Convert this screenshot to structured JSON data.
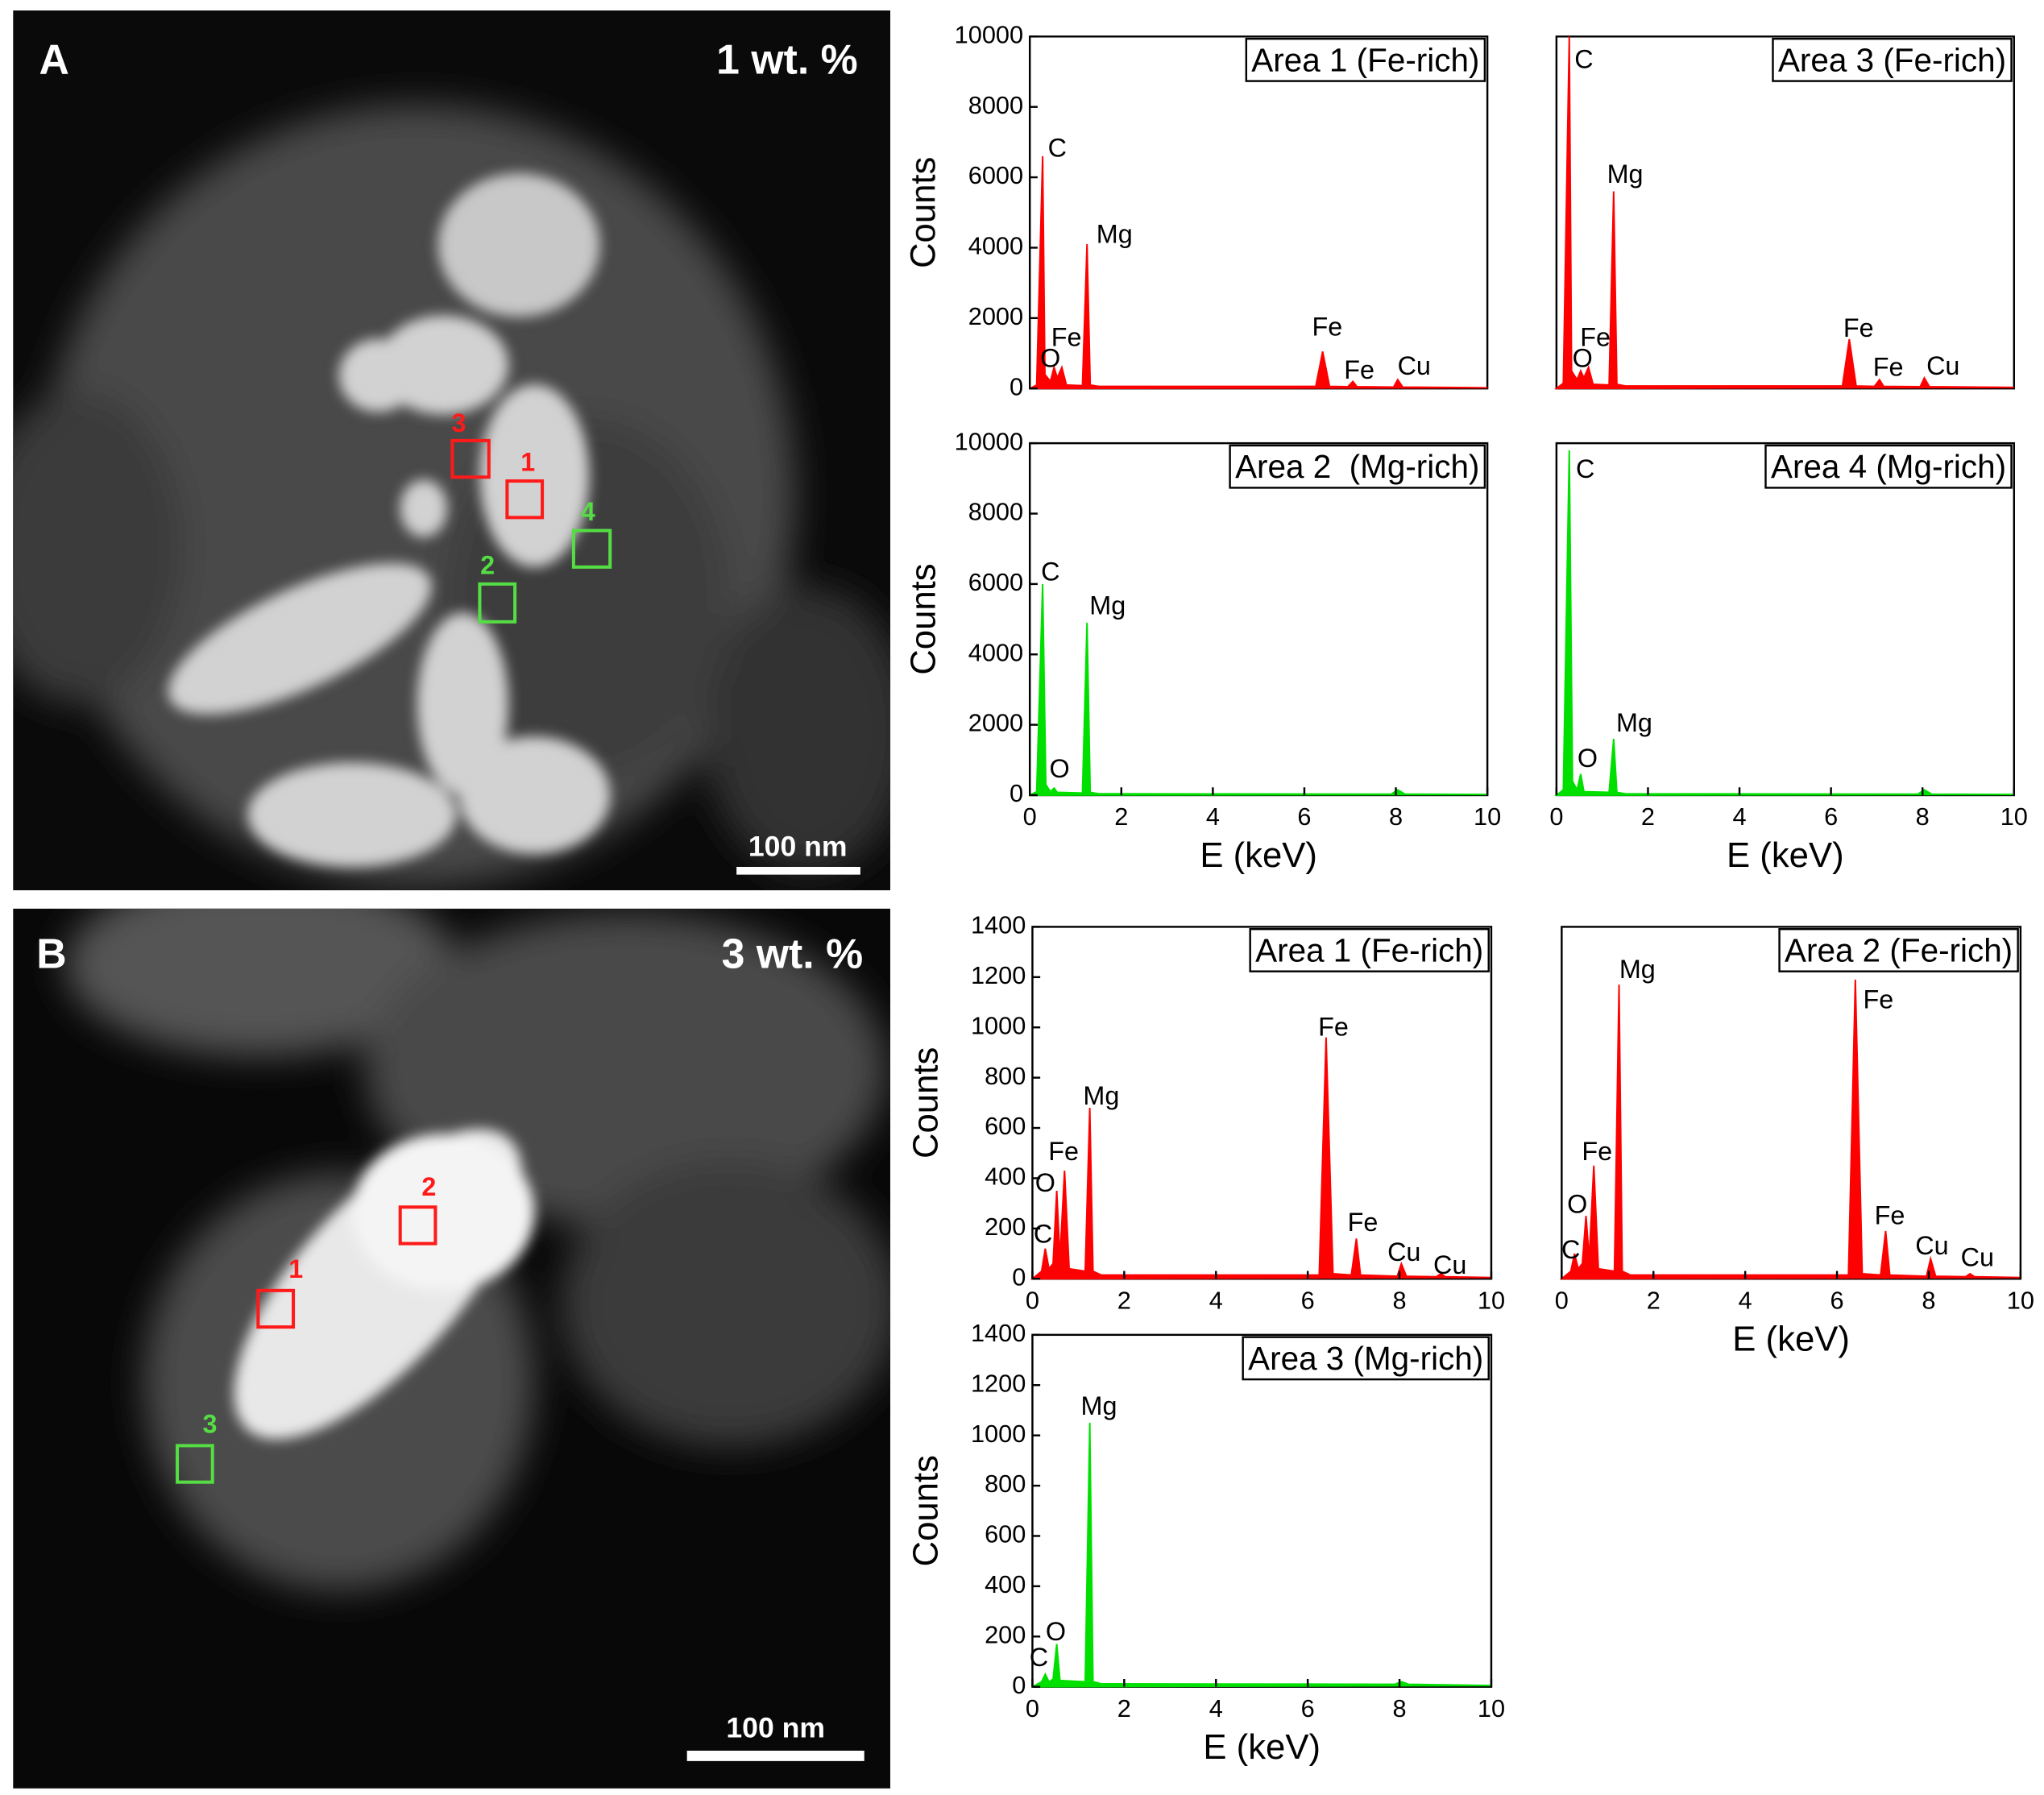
{
  "panels": [
    {
      "label": "A",
      "loading": "1 wt. %",
      "scale_bar": "100 nm",
      "areas": [
        "1",
        "2",
        "3",
        "4"
      ]
    },
    {
      "label": "B",
      "loading": "3 wt. %",
      "scale_bar": "100 nm",
      "areas": [
        "1",
        "2",
        "3"
      ]
    }
  ],
  "chart_data": [
    {
      "type": "area",
      "title": "Area 1 (Fe-rich)",
      "ylabel": "Counts",
      "color": "#ff0000",
      "x": [
        0,
        0.15,
        0.28,
        0.33,
        0.45,
        0.53,
        0.6,
        0.7,
        0.8,
        1.15,
        1.25,
        1.32,
        1.5,
        6.25,
        6.4,
        6.55,
        6.95,
        7.06,
        7.15,
        7.95,
        8.04,
        8.15,
        10
      ],
      "values": [
        0,
        100,
        6600,
        400,
        200,
        600,
        300,
        600,
        100,
        80,
        4100,
        100,
        60,
        60,
        1050,
        60,
        50,
        200,
        50,
        40,
        250,
        40,
        20
      ],
      "xlim": [
        0,
        10
      ],
      "ylim": [
        0,
        10000
      ],
      "yticks": [
        0,
        2000,
        4000,
        6000,
        8000,
        10000
      ],
      "annotations": [
        {
          "text": "C",
          "x": 0.6,
          "y": 6780
        },
        {
          "text": "Fe",
          "x": 0.8,
          "y": 1400
        },
        {
          "text": "O",
          "x": 0.45,
          "y": 810
        },
        {
          "text": "Mg",
          "x": 1.85,
          "y": 4330
        },
        {
          "text": "Fe",
          "x": 6.5,
          "y": 1700
        },
        {
          "text": "Fe",
          "x": 7.2,
          "y": 480
        },
        {
          "text": "Cu",
          "x": 8.4,
          "y": 590
        }
      ]
    },
    {
      "type": "area",
      "title": "Area 3 (Fe-rich)",
      "color": "#ff0000",
      "x": [
        0,
        0.15,
        0.28,
        0.33,
        0.45,
        0.53,
        0.6,
        0.7,
        0.8,
        1.15,
        1.25,
        1.32,
        1.5,
        6.25,
        6.4,
        6.55,
        6.95,
        7.06,
        7.15,
        7.95,
        8.04,
        8.15,
        10
      ],
      "values": [
        0,
        150,
        10000,
        500,
        250,
        500,
        300,
        600,
        120,
        100,
        5600,
        120,
        70,
        70,
        1400,
        70,
        60,
        250,
        60,
        50,
        300,
        50,
        30
      ],
      "xlim": [
        0,
        10
      ],
      "ylim": [
        0,
        10000
      ],
      "annotations": [
        {
          "text": "C",
          "x": 0.6,
          "y": 9300
        },
        {
          "text": "Mg",
          "x": 1.5,
          "y": 6040
        },
        {
          "text": "Fe",
          "x": 0.85,
          "y": 1400
        },
        {
          "text": "O",
          "x": 0.57,
          "y": 810
        },
        {
          "text": "Fe",
          "x": 6.6,
          "y": 1670
        },
        {
          "text": "Fe",
          "x": 7.25,
          "y": 560
        },
        {
          "text": "Cu",
          "x": 8.45,
          "y": 590
        }
      ]
    },
    {
      "type": "area",
      "title": "Area 2  (Mg-rich)",
      "xlabel": "E (keV)",
      "ylabel": "Counts",
      "color": "#00e000",
      "x": [
        0,
        0.15,
        0.28,
        0.35,
        0.45,
        0.53,
        0.6,
        1.15,
        1.25,
        1.32,
        1.5,
        7.9,
        8.04,
        8.2,
        10
      ],
      "values": [
        0,
        100,
        6000,
        300,
        100,
        200,
        80,
        60,
        4900,
        80,
        40,
        30,
        150,
        30,
        20
      ],
      "xlim": [
        0,
        10
      ],
      "ylim": [
        0,
        10000
      ],
      "xticks": [
        0,
        2,
        4,
        6,
        8,
        10
      ],
      "yticks": [
        0,
        2000,
        4000,
        6000,
        8000,
        10000
      ],
      "annotations": [
        {
          "text": "C",
          "x": 0.45,
          "y": 6300
        },
        {
          "text": "Mg",
          "x": 1.7,
          "y": 5330
        },
        {
          "text": "O",
          "x": 0.65,
          "y": 700
        }
      ]
    },
    {
      "type": "area",
      "title": "Area 4 (Mg-rich)",
      "xlabel": "E (keV)",
      "color": "#00e000",
      "x": [
        0,
        0.15,
        0.28,
        0.35,
        0.45,
        0.53,
        0.6,
        1.15,
        1.25,
        1.32,
        1.5,
        7.9,
        8.04,
        8.2,
        10
      ],
      "values": [
        0,
        150,
        9800,
        400,
        150,
        600,
        100,
        80,
        1600,
        80,
        40,
        30,
        150,
        30,
        20
      ],
      "xlim": [
        0,
        10
      ],
      "ylim": [
        0,
        10000
      ],
      "xticks": [
        0,
        2,
        4,
        6,
        8,
        10
      ],
      "annotations": [
        {
          "text": "C",
          "x": 0.63,
          "y": 9220
        },
        {
          "text": "Mg",
          "x": 1.7,
          "y": 2000
        },
        {
          "text": "O",
          "x": 0.68,
          "y": 1000
        }
      ]
    },
    {
      "type": "area",
      "title": "Area 1 (Fe-rich)",
      "ylabel": "Counts",
      "color": "#ff0000",
      "x": [
        0,
        0.2,
        0.28,
        0.36,
        0.45,
        0.53,
        0.6,
        0.7,
        0.8,
        1.15,
        1.25,
        1.32,
        1.5,
        6.25,
        6.4,
        6.55,
        6.95,
        7.06,
        7.15,
        7.95,
        8.04,
        8.15,
        8.8,
        8.9,
        9.0,
        10
      ],
      "values": [
        0,
        30,
        120,
        40,
        60,
        350,
        80,
        430,
        40,
        30,
        680,
        30,
        15,
        15,
        960,
        20,
        15,
        160,
        15,
        10,
        60,
        10,
        8,
        20,
        8,
        5
      ],
      "xlim": [
        0,
        10
      ],
      "ylim": [
        0,
        1400
      ],
      "xticks": [
        0,
        2,
        4,
        6,
        8,
        10
      ],
      "yticks": [
        0,
        200,
        400,
        600,
        800,
        1000,
        1200,
        1400
      ],
      "annotations": [
        {
          "text": "Mg",
          "x": 1.5,
          "y": 720
        },
        {
          "text": "Fe",
          "x": 0.68,
          "y": 500
        },
        {
          "text": "O",
          "x": 0.28,
          "y": 375
        },
        {
          "text": "C",
          "x": 0.23,
          "y": 171
        },
        {
          "text": "Fe",
          "x": 6.56,
          "y": 995
        },
        {
          "text": "Fe",
          "x": 7.2,
          "y": 218
        },
        {
          "text": "Cu",
          "x": 8.1,
          "y": 98
        },
        {
          "text": "Cu",
          "x": 9.1,
          "y": 47
        }
      ]
    },
    {
      "type": "area",
      "title": "Area 2 (Fe-rich)",
      "xlabel": "E (keV)",
      "color": "#ff0000",
      "x": [
        0,
        0.2,
        0.28,
        0.36,
        0.45,
        0.53,
        0.6,
        0.7,
        0.8,
        1.15,
        1.25,
        1.32,
        1.5,
        6.25,
        6.4,
        6.55,
        6.95,
        7.06,
        7.15,
        7.95,
        8.04,
        8.15,
        8.8,
        8.9,
        9.0,
        10
      ],
      "values": [
        0,
        30,
        100,
        40,
        60,
        250,
        80,
        450,
        40,
        30,
        1170,
        30,
        15,
        15,
        1190,
        20,
        15,
        190,
        15,
        10,
        80,
        10,
        8,
        20,
        8,
        5
      ],
      "xlim": [
        0,
        10
      ],
      "ylim": [
        0,
        1400
      ],
      "xticks": [
        0,
        2,
        4,
        6,
        8,
        10
      ],
      "annotations": [
        {
          "text": "Mg",
          "x": 1.65,
          "y": 1223
        },
        {
          "text": "Fe",
          "x": 6.9,
          "y": 1104
        },
        {
          "text": "Fe",
          "x": 0.77,
          "y": 500
        },
        {
          "text": "O",
          "x": 0.34,
          "y": 290
        },
        {
          "text": "C",
          "x": 0.2,
          "y": 109
        },
        {
          "text": "Fe",
          "x": 7.15,
          "y": 244
        },
        {
          "text": "Cu",
          "x": 8.07,
          "y": 124
        },
        {
          "text": "Cu",
          "x": 9.06,
          "y": 78
        }
      ]
    },
    {
      "type": "area",
      "title": "Area 3 (Mg-rich)",
      "xlabel": "E (keV)",
      "ylabel": "Counts",
      "color": "#00e000",
      "x": [
        0,
        0.2,
        0.28,
        0.36,
        0.45,
        0.53,
        0.6,
        1.15,
        1.25,
        1.32,
        1.5,
        7.9,
        8.04,
        8.2,
        10
      ],
      "values": [
        0,
        20,
        50,
        20,
        30,
        170,
        25,
        20,
        1050,
        20,
        12,
        10,
        20,
        10,
        5
      ],
      "xlim": [
        0,
        10
      ],
      "ylim": [
        0,
        1400
      ],
      "xticks": [
        0,
        2,
        4,
        6,
        8,
        10
      ],
      "yticks": [
        0,
        200,
        400,
        600,
        800,
        1000,
        1200,
        1400
      ],
      "annotations": [
        {
          "text": "Mg",
          "x": 1.45,
          "y": 1109
        },
        {
          "text": "O",
          "x": 0.51,
          "y": 212
        },
        {
          "text": "C",
          "x": 0.14,
          "y": 109
        }
      ]
    }
  ]
}
